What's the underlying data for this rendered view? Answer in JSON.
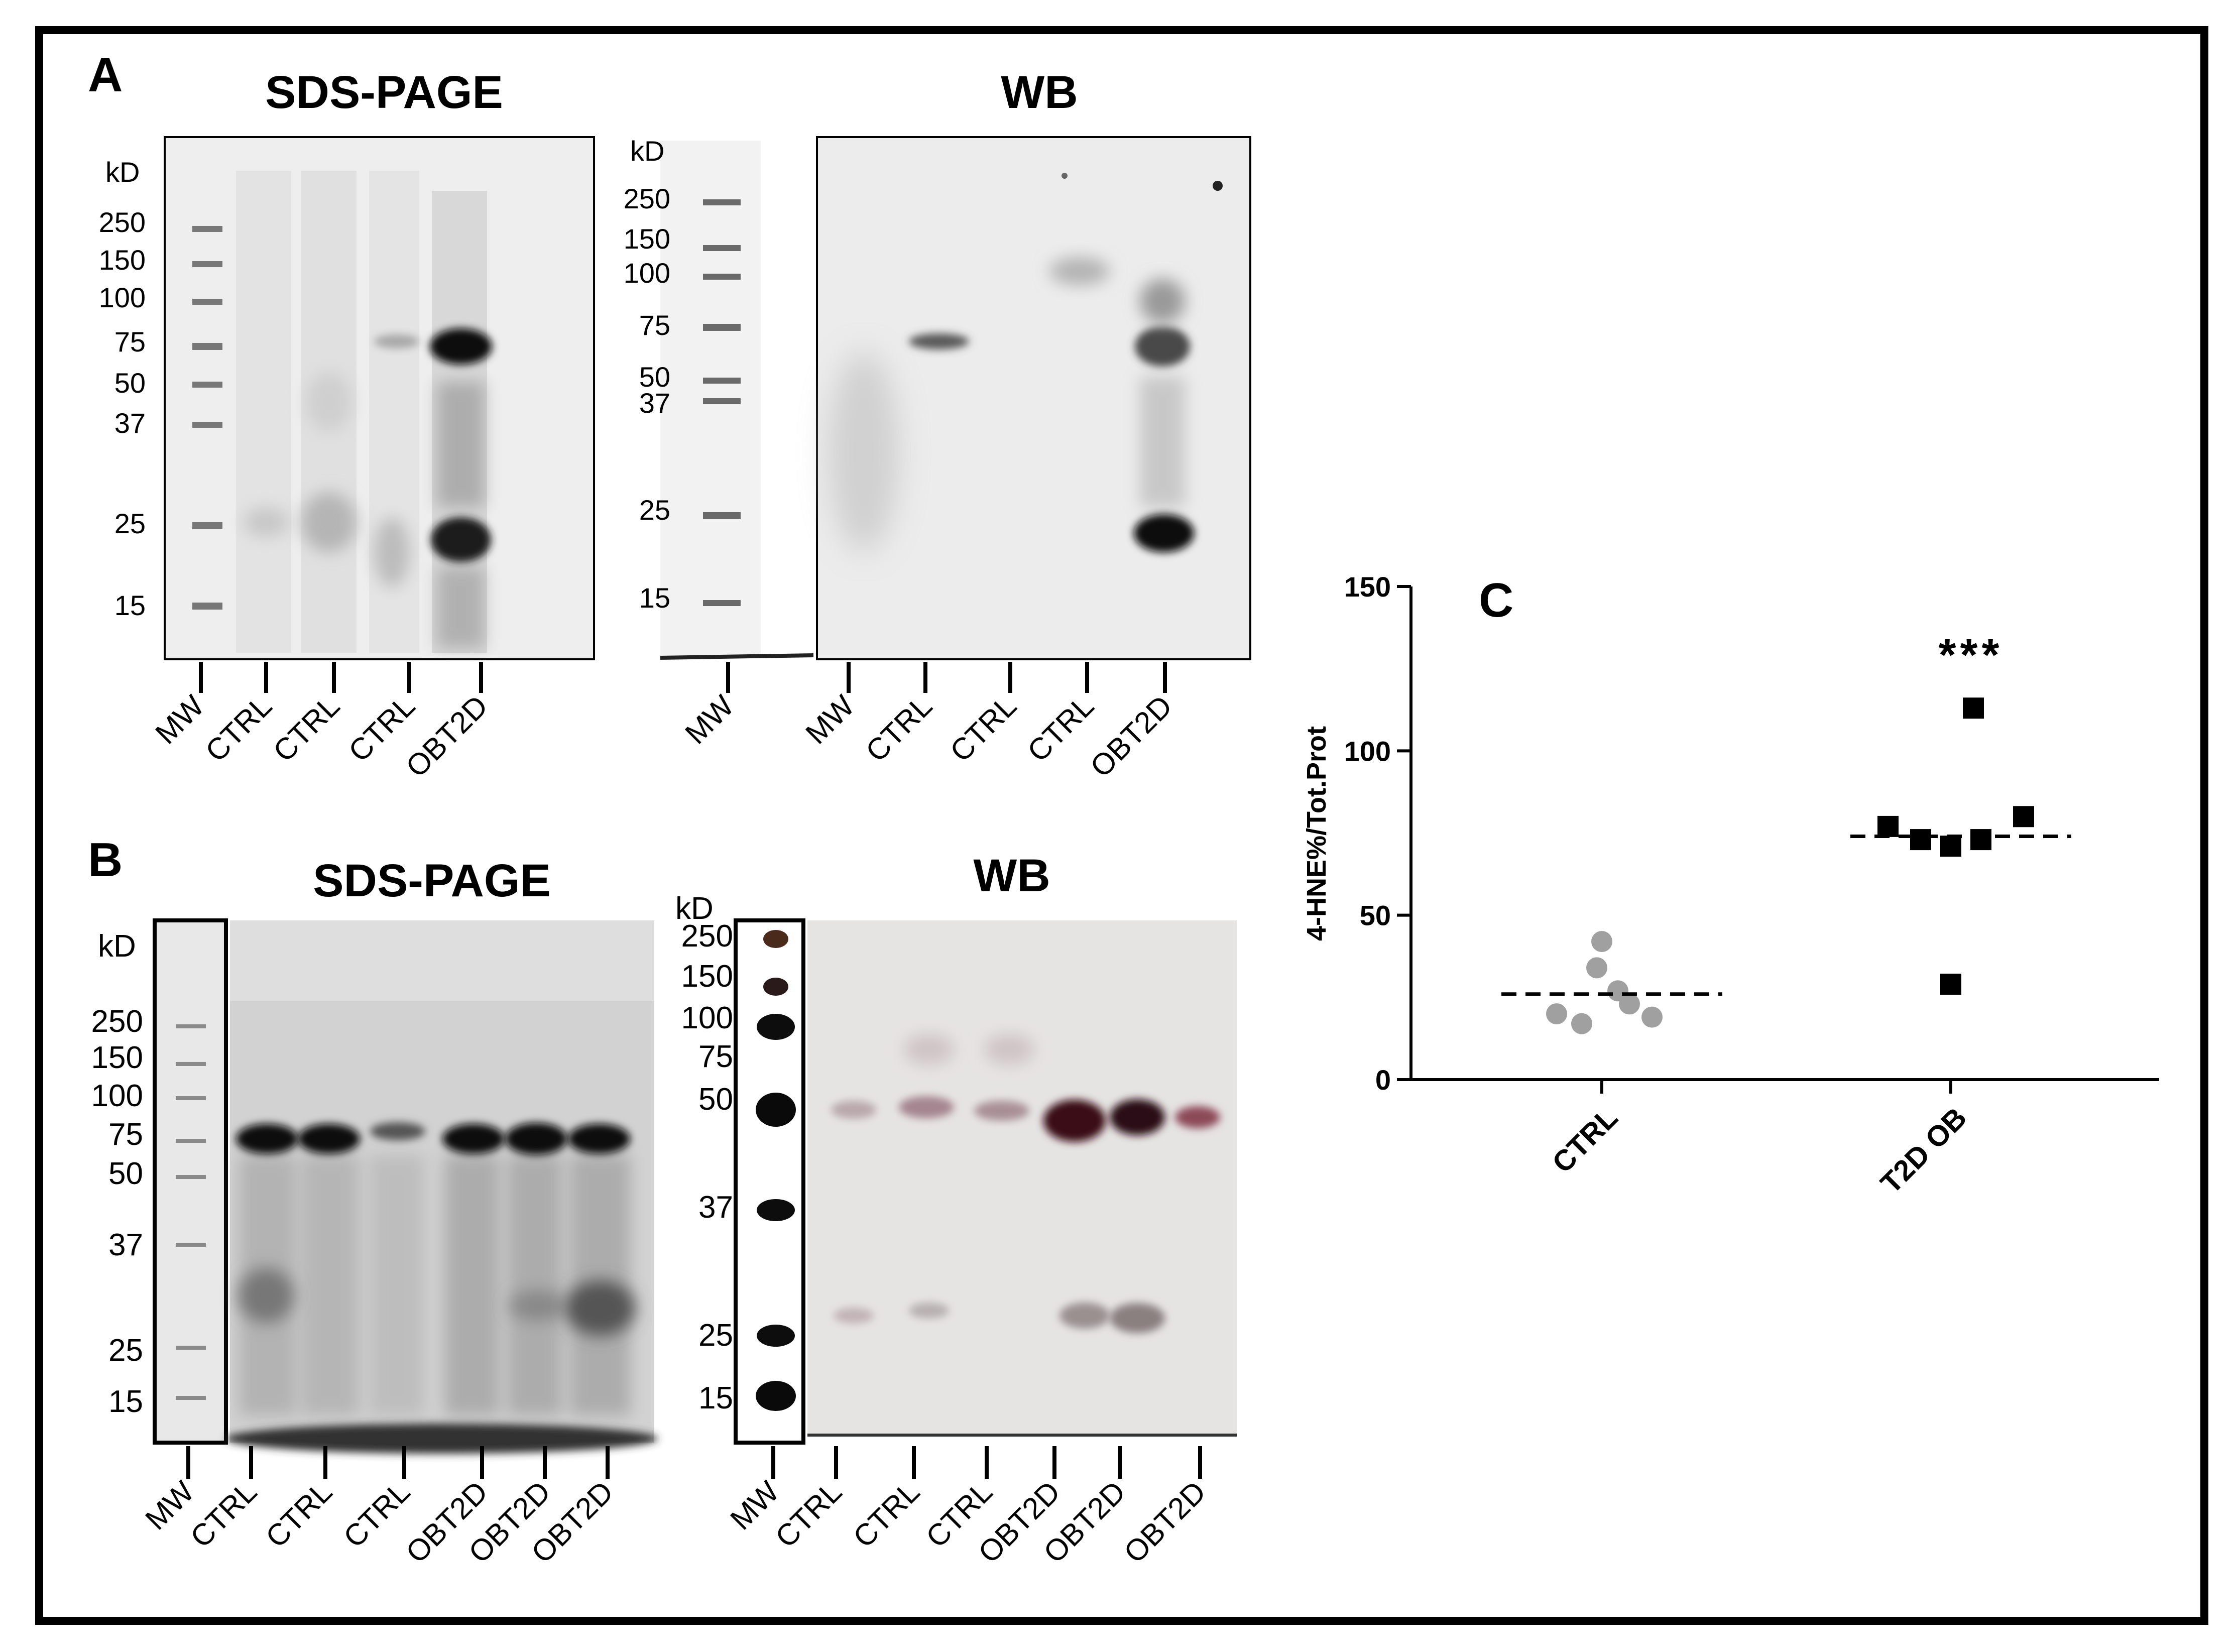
{
  "panelA": {
    "label": "A",
    "sds": {
      "title": "SDS-PAGE",
      "kd_label": "kD",
      "markers": [
        "250",
        "150",
        "100",
        "75",
        "50",
        "37",
        "25",
        "15"
      ],
      "lanes": [
        "MW",
        "CTRL",
        "CTRL",
        "CTRL",
        "OBT2D"
      ]
    },
    "wb": {
      "title": "WB",
      "kd_label": "kD",
      "markers": [
        "250",
        "150",
        "100",
        "75",
        "50",
        "37",
        "25",
        "15"
      ],
      "lanes": [
        "MW",
        "MW",
        "CTRL",
        "CTRL",
        "CTRL",
        "OBT2D"
      ]
    }
  },
  "panelB": {
    "label": "B",
    "sds": {
      "title": "SDS-PAGE",
      "kd_label": "kD",
      "markers": [
        "250",
        "150",
        "100",
        "75",
        "50",
        "37",
        "25",
        "15"
      ],
      "lanes": [
        "MW",
        "CTRL",
        "CTRL",
        "CTRL",
        "OBT2D",
        "OBT2D",
        "OBT2D"
      ]
    },
    "wb": {
      "title": "WB",
      "kd_label": "kD",
      "markers": [
        "250",
        "150",
        "100",
        "75",
        "50",
        "37",
        "25",
        "15"
      ],
      "lanes": [
        "MW",
        "CTRL",
        "CTRL",
        "CTRL",
        "OBT2D",
        "OBT2D",
        "OBT2D"
      ]
    }
  },
  "panelC": {
    "label": "C",
    "significance": "***"
  },
  "chart_data": {
    "type": "scatter",
    "title": "",
    "xlabel": "",
    "ylabel": "4-HNE%/Tot.Prot",
    "categories": [
      "CTRL",
      "T2D OB"
    ],
    "ylim": [
      0,
      150
    ],
    "yticks": [
      0,
      50,
      100,
      150
    ],
    "grid": false,
    "series": [
      {
        "category": "CTRL",
        "values": [
          42,
          34,
          27,
          23,
          20,
          17,
          19
        ],
        "mean": 26,
        "color": "#a0a0a0",
        "marker": "circle"
      },
      {
        "category": "T2D OB",
        "values": [
          113,
          77,
          80,
          73,
          71,
          73,
          29
        ],
        "mean": 74,
        "color": "#000000",
        "marker": "square"
      }
    ]
  }
}
